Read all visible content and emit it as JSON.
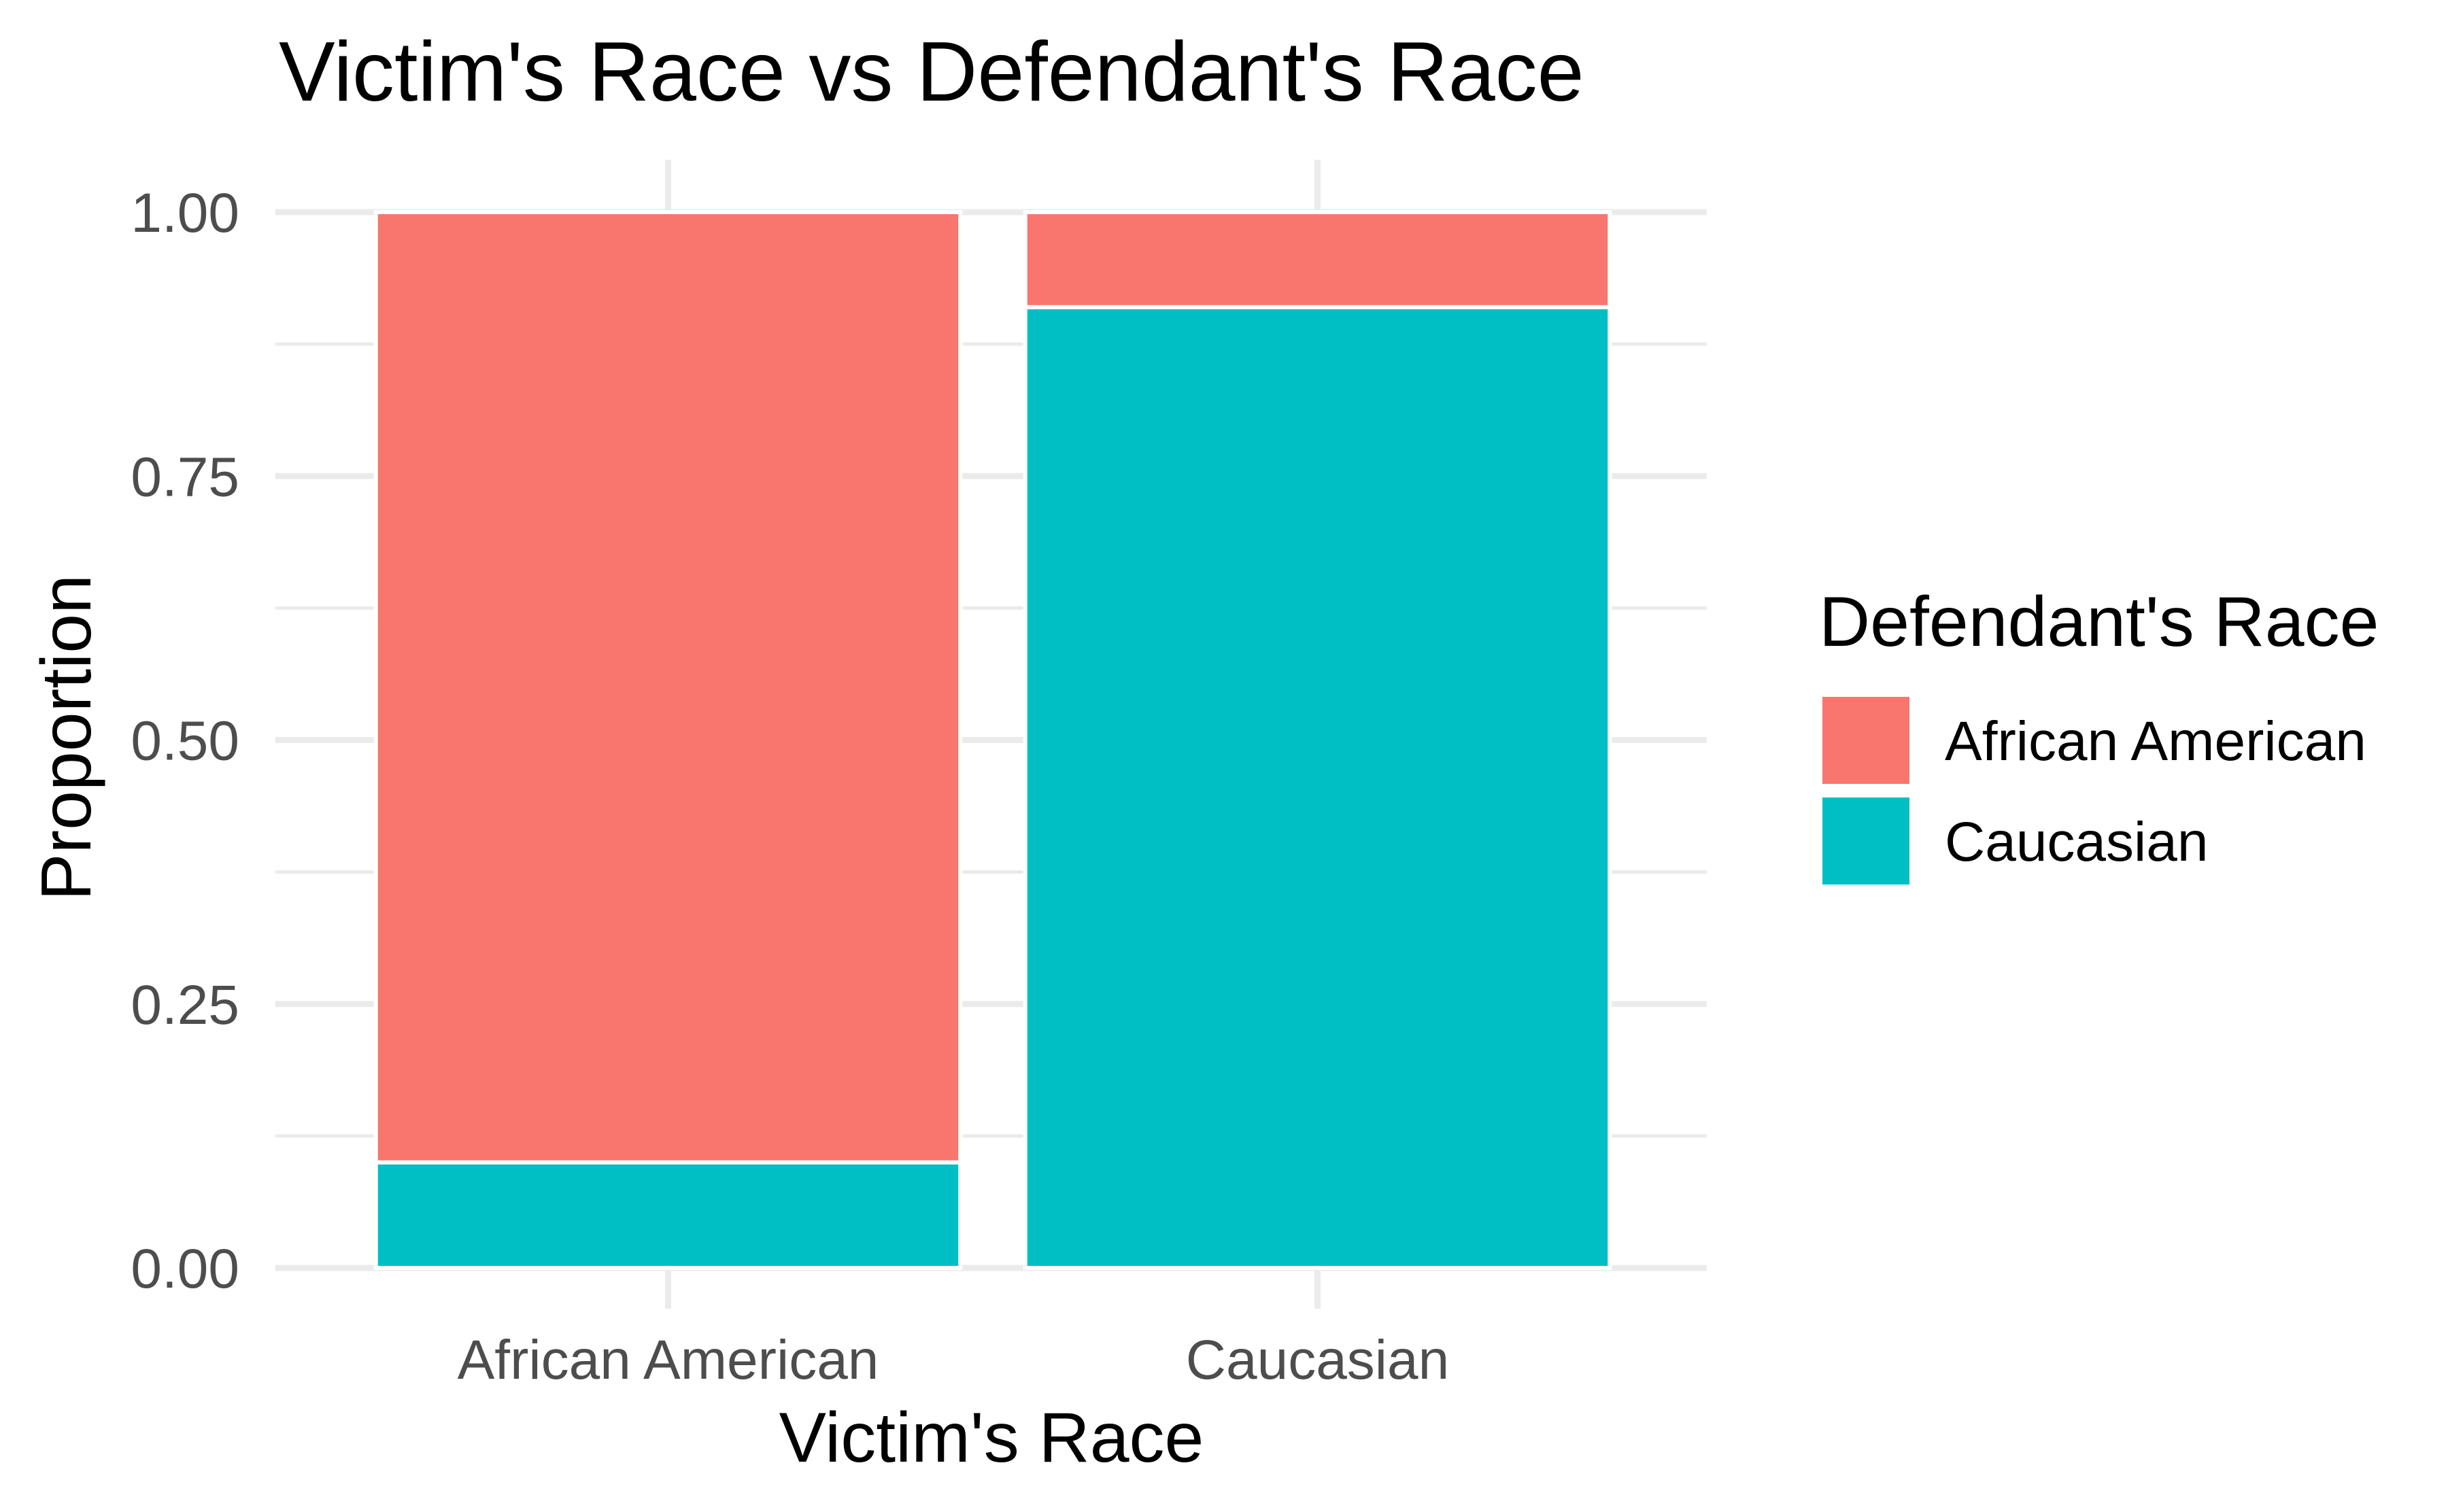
{
  "chart_data": {
    "type": "bar",
    "stacked": true,
    "title": "Victim's Race vs Defendant's Race",
    "xlabel": "Victim's Race",
    "ylabel": "Proportion",
    "categories": [
      "African American",
      "Caucasian"
    ],
    "series": [
      {
        "name": "African American",
        "color": "#F8766D",
        "values": [
          0.9,
          0.09
        ]
      },
      {
        "name": "Caucasian",
        "color": "#00BFC4",
        "values": [
          0.1,
          0.91
        ]
      }
    ],
    "ylim": [
      0,
      1
    ],
    "yticks": [
      "0.00",
      "0.25",
      "0.50",
      "0.75",
      "1.00"
    ],
    "grid": true,
    "legend": {
      "title": "Defendant's Race",
      "position": "right"
    }
  }
}
